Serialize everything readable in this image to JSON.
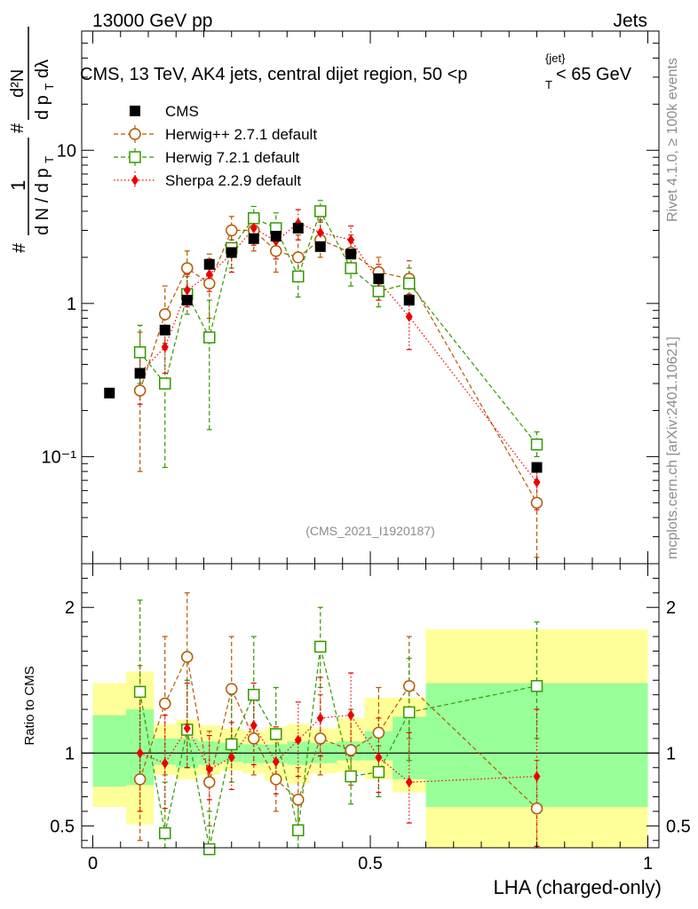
{
  "header": {
    "left": "13000 GeV pp",
    "right": "Jets"
  },
  "watermark_right_top": "Rivet 4.1.0, ≥ 100k events",
  "watermark_right_bottom": "mcplots.cern.ch [arXiv:2401.10621]",
  "analysis_id": "(CMS_2021_I1920187)",
  "plot_title_main": "CMS, 13 TeV, AK4 jets, central dijet region, 50 <p",
  "plot_title_sup": "{jet}",
  "plot_title_sub": "T",
  "plot_title_end": "< 65 GeV",
  "ylabel_top": {
    "numerator_outer": "1",
    "denominator_outer": "d N / d p",
    "denominator_outer_sub": "T",
    "numerator_inner": "d²N",
    "denominator_inner": "d p",
    "denominator_inner_sub": "T",
    "denominator_inner_end": "dλ",
    "hash": "#"
  },
  "ylabel_ratio": "Ratio to CMS",
  "xlabel": "LHA (charged-only)",
  "legend": [
    {
      "name": "CMS",
      "color": "#000000",
      "marker": "square-filled",
      "line": "none"
    },
    {
      "name": "Herwig++ 2.7.1 default",
      "color": "#b35900",
      "marker": "circle-open",
      "line": "dashed"
    },
    {
      "name": "Herwig 7.2.1 default",
      "color": "#339900",
      "marker": "square-open",
      "line": "dashed"
    },
    {
      "name": "Sherpa 2.2.9 default",
      "color": "#ee0000",
      "marker": "diamond-filled",
      "line": "dotted"
    }
  ],
  "colors": {
    "band_inner": "#99ff99",
    "band_outer": "#ffff99",
    "cms": "#000000",
    "herwigpp": "#b35900",
    "herwig7": "#339900",
    "sherpa": "#ee0000"
  },
  "chart_data": [
    {
      "type": "scatter",
      "panel": "main",
      "xlim": [
        -0.02,
        1.02
      ],
      "ylim": [
        0.02,
        60
      ],
      "yscale": "log",
      "ytick_labels": [
        "10⁻¹",
        "1",
        "10"
      ],
      "ytick_values": [
        0.1,
        1,
        10
      ],
      "series": [
        {
          "name": "CMS",
          "x": [
            0.03,
            0.085,
            0.13,
            0.17,
            0.21,
            0.25,
            0.29,
            0.33,
            0.37,
            0.41,
            0.465,
            0.515,
            0.57,
            0.8
          ],
          "y": [
            0.26,
            0.35,
            0.67,
            1.05,
            1.8,
            2.15,
            2.65,
            2.75,
            3.1,
            2.35,
            2.1,
            1.45,
            1.05,
            0.085
          ]
        },
        {
          "name": "Herwig++ 2.7.1 default",
          "x": [
            0.085,
            0.13,
            0.17,
            0.21,
            0.25,
            0.29,
            0.33,
            0.37,
            0.41,
            0.465,
            0.515,
            0.57,
            0.8
          ],
          "y": [
            0.27,
            0.85,
            1.7,
            1.35,
            3.0,
            3.0,
            2.2,
            2.0,
            2.6,
            2.15,
            1.6,
            1.45,
            0.05
          ],
          "ylow": [
            0.08,
            0.5,
            1.2,
            0.8,
            2.3,
            2.2,
            1.6,
            1.5,
            2.0,
            1.6,
            1.2,
            1.1,
            0.022
          ],
          "yhigh": [
            0.65,
            1.3,
            2.2,
            2.1,
            3.7,
            3.8,
            3.0,
            2.8,
            3.4,
            2.8,
            2.0,
            1.9,
            0.08
          ]
        },
        {
          "name": "Herwig 7.2.1 default",
          "x": [
            0.085,
            0.13,
            0.17,
            0.21,
            0.25,
            0.29,
            0.33,
            0.37,
            0.41,
            0.465,
            0.515,
            0.57,
            0.8
          ],
          "y": [
            0.48,
            0.3,
            1.15,
            0.6,
            2.3,
            3.6,
            3.1,
            1.5,
            4.0,
            1.7,
            1.2,
            1.35,
            0.12
          ],
          "ylow": [
            0.3,
            0.085,
            0.85,
            0.15,
            1.7,
            2.8,
            2.3,
            1.1,
            3.4,
            1.3,
            0.95,
            1.0,
            0.1
          ],
          "yhigh": [
            0.72,
            0.55,
            1.5,
            1.05,
            2.9,
            4.3,
            3.9,
            1.9,
            4.7,
            2.1,
            1.45,
            1.7,
            0.145
          ]
        },
        {
          "name": "Sherpa 2.2.9 default",
          "x": [
            0.085,
            0.13,
            0.17,
            0.21,
            0.25,
            0.29,
            0.33,
            0.37,
            0.41,
            0.465,
            0.515,
            0.57,
            0.8
          ],
          "y": [
            0.35,
            0.52,
            1.22,
            1.55,
            2.1,
            3.1,
            2.55,
            3.35,
            2.9,
            2.6,
            1.4,
            0.82,
            0.068
          ],
          "ylow": [
            0.22,
            0.35,
            0.95,
            1.2,
            1.6,
            2.4,
            1.95,
            2.6,
            2.3,
            2.0,
            1.05,
            0.5,
            0.045
          ],
          "yhigh": [
            0.5,
            0.72,
            1.55,
            1.95,
            2.6,
            3.8,
            3.2,
            4.1,
            3.5,
            3.2,
            1.8,
            1.15,
            0.09
          ]
        }
      ]
    },
    {
      "type": "scatter",
      "panel": "ratio",
      "xlim": [
        -0.02,
        1.02
      ],
      "ylim": [
        0.35,
        2.3
      ],
      "xtick_labels": [
        "0",
        "0.5",
        "1"
      ],
      "xtick_values": [
        0,
        0.5,
        1
      ],
      "ytick_labels": [
        "0.5",
        "1",
        "2"
      ],
      "ytick_values": [
        0.5,
        1,
        2
      ],
      "reference_line": 1,
      "bands": {
        "bin_edges": [
          0,
          0.06,
          0.11,
          0.15,
          0.19,
          0.23,
          0.27,
          0.31,
          0.35,
          0.39,
          0.44,
          0.49,
          0.54,
          0.6,
          1.0
        ],
        "inner_low": [
          0.77,
          0.78,
          0.92,
          0.9,
          0.92,
          0.94,
          0.93,
          0.93,
          0.92,
          0.93,
          0.95,
          0.95,
          0.82,
          0.63
        ],
        "inner_high": [
          1.26,
          1.3,
          1.1,
          1.1,
          1.08,
          1.07,
          1.06,
          1.06,
          1.08,
          1.07,
          1.08,
          1.15,
          1.25,
          1.48
        ],
        "outer_low": [
          0.63,
          0.51,
          0.85,
          0.82,
          0.85,
          0.88,
          0.86,
          0.81,
          0.79,
          0.86,
          0.87,
          0.82,
          0.73,
          0.35
        ],
        "outer_high": [
          1.48,
          1.56,
          1.2,
          1.23,
          1.19,
          1.17,
          1.15,
          1.18,
          1.2,
          1.17,
          1.24,
          1.38,
          1.38,
          1.85
        ]
      },
      "series": [
        {
          "name": "Herwig++ 2.7.1 default",
          "x": [
            0.085,
            0.13,
            0.17,
            0.21,
            0.25,
            0.29,
            0.33,
            0.37,
            0.41,
            0.465,
            0.515,
            0.57,
            0.8
          ],
          "y": [
            0.82,
            1.34,
            1.66,
            0.8,
            1.44,
            1.1,
            0.82,
            0.68,
            1.1,
            1.02,
            1.14,
            1.46,
            0.62
          ],
          "ylow": [
            0.4,
            0.85,
            1.2,
            0.5,
            1.1,
            0.85,
            0.6,
            0.48,
            0.85,
            0.78,
            0.88,
            1.1,
            0.3
          ],
          "yhigh": [
            1.6,
            1.8,
            2.1,
            1.15,
            1.8,
            1.4,
            1.1,
            0.9,
            1.4,
            1.3,
            1.45,
            1.8,
            0.95
          ]
        },
        {
          "name": "Herwig 7.2.1 default",
          "x": [
            0.085,
            0.13,
            0.17,
            0.21,
            0.25,
            0.29,
            0.33,
            0.37,
            0.41,
            0.465,
            0.515,
            0.57,
            0.8
          ],
          "y": [
            1.42,
            0.45,
            1.16,
            0.34,
            1.06,
            1.4,
            1.13,
            0.47,
            1.73,
            0.84,
            0.87,
            1.28,
            1.46
          ],
          "ylow": [
            0.8,
            0.3,
            0.9,
            0.2,
            0.8,
            1.1,
            0.85,
            0.35,
            1.45,
            0.65,
            0.7,
            0.95,
            1.1
          ],
          "yhigh": [
            2.05,
            0.8,
            1.5,
            0.6,
            1.4,
            1.8,
            1.45,
            0.65,
            2.0,
            1.05,
            1.05,
            1.65,
            1.9
          ]
        },
        {
          "name": "Sherpa 2.2.9 default",
          "x": [
            0.085,
            0.13,
            0.17,
            0.21,
            0.25,
            0.29,
            0.33,
            0.37,
            0.41,
            0.465,
            0.515,
            0.57,
            0.8
          ],
          "y": [
            1.0,
            0.93,
            1.17,
            0.89,
            0.97,
            1.19,
            0.94,
            1.09,
            1.24,
            1.26,
            0.97,
            0.8,
            0.84
          ],
          "ylow": [
            0.6,
            0.62,
            0.9,
            0.68,
            0.75,
            0.92,
            0.72,
            0.84,
            0.98,
            0.98,
            0.73,
            0.52,
            0.36
          ],
          "yhigh": [
            1.4,
            1.26,
            1.48,
            1.12,
            1.21,
            1.48,
            1.18,
            1.35,
            1.52,
            1.55,
            1.24,
            1.14,
            1.3
          ]
        }
      ]
    }
  ]
}
